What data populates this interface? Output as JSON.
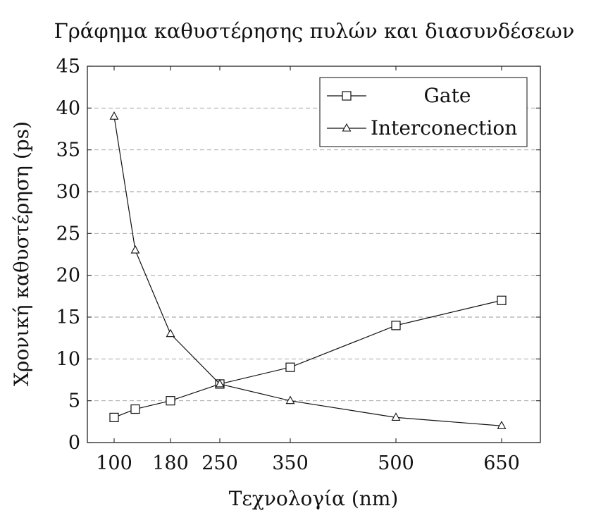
{
  "chart_data": {
    "type": "line",
    "title": "Γράφημα καθυστέρησης πυλών και διασυνδέσεων",
    "xlabel": "Τεχνολογία (nm)",
    "ylabel": "Χρονική καθυστέρηση (ps)",
    "xlim": [
      62,
      705
    ],
    "ylim": [
      0,
      45
    ],
    "xticks": [
      100,
      180,
      250,
      350,
      500,
      650
    ],
    "yticks": [
      0,
      5,
      10,
      15,
      20,
      25,
      30,
      35,
      40,
      45
    ],
    "grid": "horizontal-dashed",
    "legend_position": "top-right",
    "series": [
      {
        "name": "Gate",
        "marker": "square",
        "x": [
          100,
          130,
          180,
          250,
          350,
          500,
          650
        ],
        "values": [
          3,
          4,
          5,
          7,
          9,
          14,
          17
        ]
      },
      {
        "name": "Interconection",
        "marker": "triangle",
        "x": [
          100,
          130,
          180,
          250,
          350,
          500,
          650
        ],
        "values": [
          39,
          23,
          13,
          7,
          5,
          3,
          2
        ]
      }
    ]
  }
}
